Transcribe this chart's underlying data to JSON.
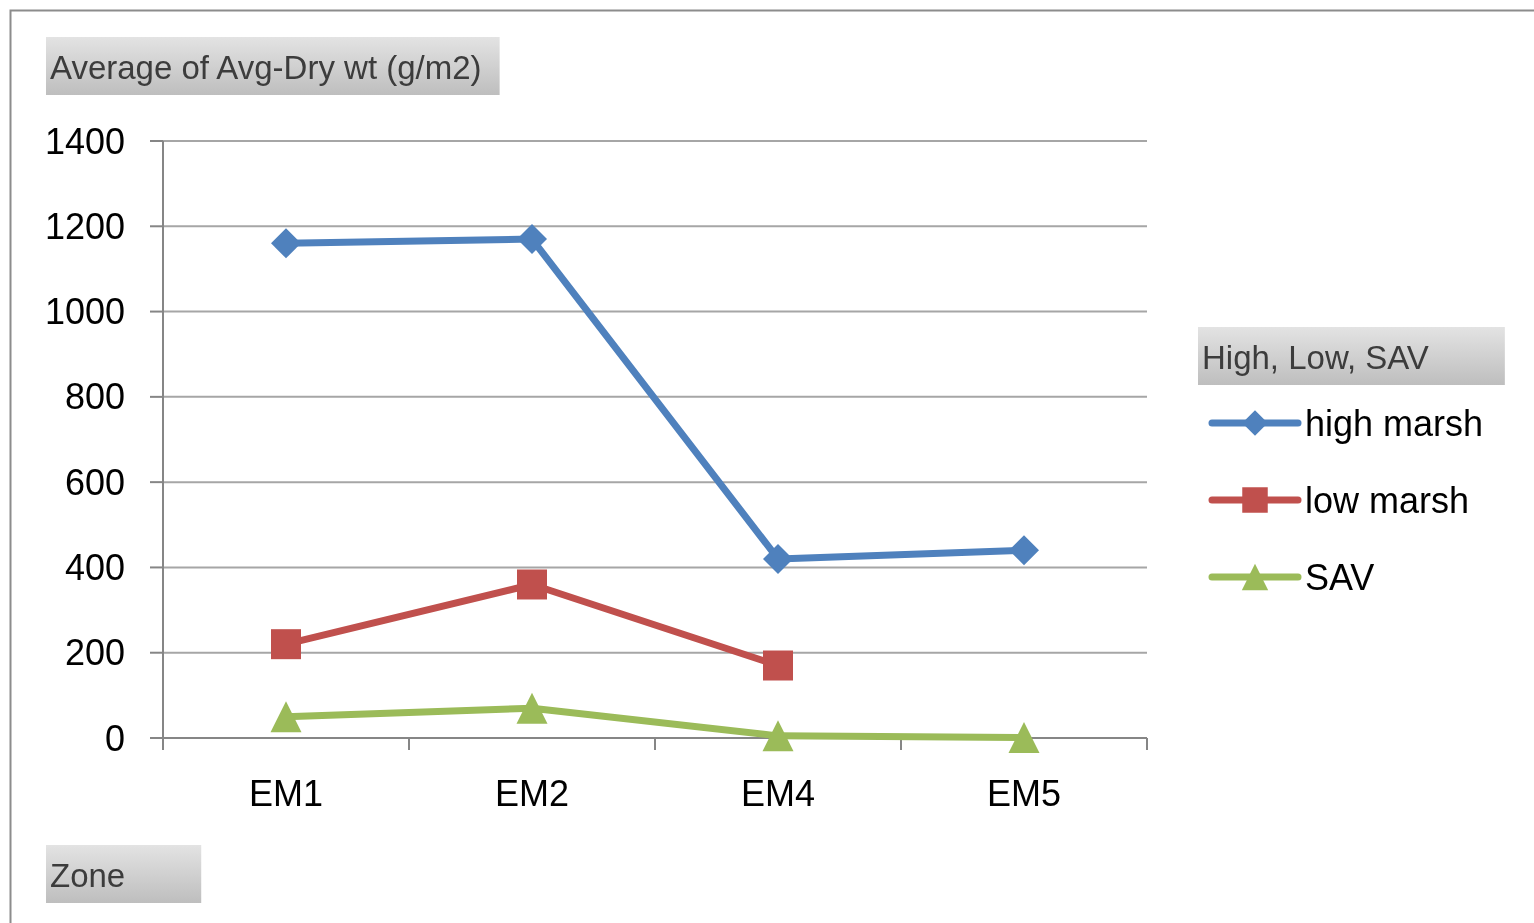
{
  "chart_data": {
    "type": "line",
    "ylabel": "Average of Avg-Dry wt (g/m2)",
    "xlabel": "Zone",
    "legend_title": "High, Low, SAV",
    "categories": [
      "EM1",
      "EM2",
      "EM4",
      "EM5"
    ],
    "series": [
      {
        "name": "high marsh",
        "color": "#4f81bd",
        "marker": "diamond",
        "values": [
          1160,
          1170,
          420,
          440
        ]
      },
      {
        "name": "low marsh",
        "color": "#c0504d",
        "marker": "square",
        "values": [
          220,
          360,
          170,
          null
        ]
      },
      {
        "name": "SAV",
        "color": "#9bbb59",
        "marker": "triangle",
        "values": [
          50,
          70,
          5,
          1
        ]
      }
    ],
    "ylim": [
      0,
      1400
    ],
    "yticks": [
      0,
      200,
      400,
      600,
      800,
      1000,
      1200,
      1400
    ],
    "grid": "y",
    "legend": "right",
    "line_style": "solid"
  }
}
